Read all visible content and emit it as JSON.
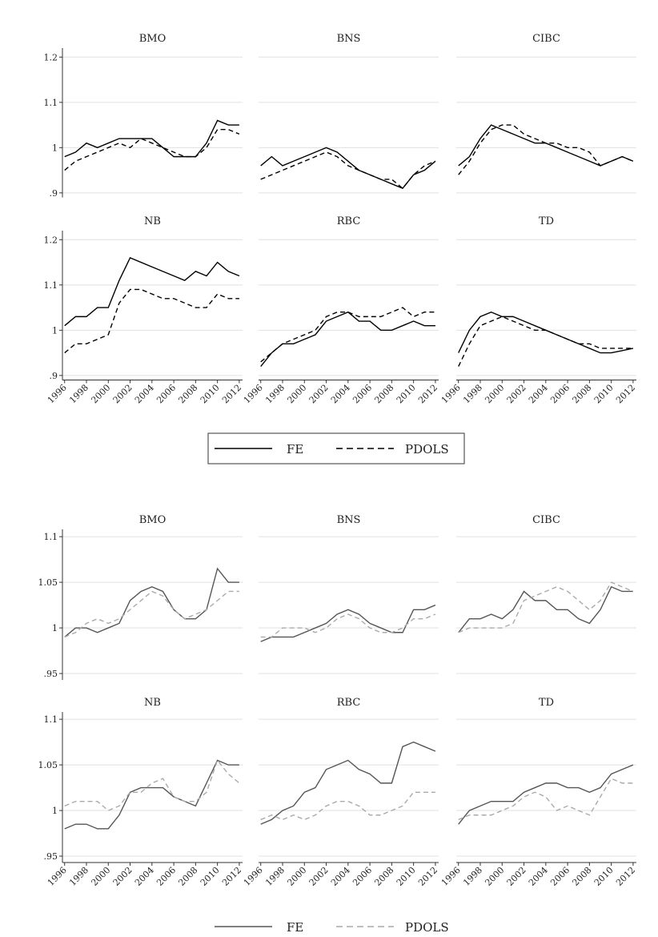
{
  "chart_data": [
    {
      "type": "line",
      "title": "BMO",
      "x": [
        1996,
        1997,
        1998,
        1999,
        2000,
        2001,
        2002,
        2003,
        2004,
        2005,
        2006,
        2007,
        2008,
        2009,
        2010,
        2011,
        2012
      ],
      "xlim": [
        1995.8,
        2012.3
      ],
      "ylim": [
        0.89,
        1.22
      ],
      "yticks": [
        {
          "value": 0.9,
          "label": ".9"
        },
        1,
        1.1,
        1.2
      ],
      "series": [
        {
          "name": "FE",
          "color": "#000000",
          "linestyle": "solid",
          "values": [
            0.98,
            0.99,
            1.01,
            1.0,
            1.01,
            1.02,
            1.02,
            1.02,
            1.02,
            1.0,
            0.98,
            0.98,
            0.98,
            1.01,
            1.06,
            1.05,
            1.05
          ]
        },
        {
          "name": "PDOLS",
          "color": "#000000",
          "linestyle": "dashed",
          "values": [
            0.95,
            0.97,
            0.98,
            0.99,
            1.0,
            1.01,
            1.0,
            1.02,
            1.01,
            1.0,
            0.99,
            0.98,
            0.98,
            1.0,
            1.04,
            1.04,
            1.03
          ]
        }
      ]
    },
    {
      "type": "line",
      "title": "BNS",
      "x": [
        1996,
        1997,
        1998,
        1999,
        2000,
        2001,
        2002,
        2003,
        2004,
        2005,
        2006,
        2007,
        2008,
        2009,
        2010,
        2011,
        2012
      ],
      "xlim": [
        1995.8,
        2012.3
      ],
      "ylim": [
        0.89,
        1.22
      ],
      "yticks": [
        {
          "value": 0.9,
          "label": ".9"
        },
        1,
        1.1,
        1.2
      ],
      "series": [
        {
          "name": "FE",
          "color": "#000000",
          "linestyle": "solid",
          "values": [
            0.96,
            0.98,
            0.96,
            0.97,
            0.98,
            0.99,
            1.0,
            0.99,
            0.97,
            0.95,
            0.94,
            0.93,
            0.92,
            0.91,
            0.94,
            0.95,
            0.97
          ]
        },
        {
          "name": "PDOLS",
          "color": "#000000",
          "linestyle": "dashed",
          "values": [
            0.93,
            0.94,
            0.95,
            0.96,
            0.97,
            0.98,
            0.99,
            0.98,
            0.96,
            0.95,
            0.94,
            0.93,
            0.93,
            0.91,
            0.94,
            0.96,
            0.97
          ]
        }
      ]
    },
    {
      "type": "line",
      "title": "CIBC",
      "x": [
        1996,
        1997,
        1998,
        1999,
        2000,
        2001,
        2002,
        2003,
        2004,
        2005,
        2006,
        2007,
        2008,
        2009,
        2010,
        2011,
        2012
      ],
      "xlim": [
        1995.8,
        2012.3
      ],
      "ylim": [
        0.89,
        1.22
      ],
      "yticks": [
        {
          "value": 0.9,
          "label": ".9"
        },
        1,
        1.1,
        1.2
      ],
      "series": [
        {
          "name": "FE",
          "color": "#000000",
          "linestyle": "solid",
          "values": [
            0.96,
            0.98,
            1.02,
            1.05,
            1.04,
            1.03,
            1.02,
            1.01,
            1.01,
            1.0,
            0.99,
            0.98,
            0.97,
            0.96,
            0.97,
            0.98,
            0.97
          ]
        },
        {
          "name": "PDOLS",
          "color": "#000000",
          "linestyle": "dashed",
          "values": [
            0.94,
            0.97,
            1.01,
            1.04,
            1.05,
            1.05,
            1.03,
            1.02,
            1.01,
            1.01,
            1.0,
            1.0,
            0.99,
            0.96,
            0.97,
            0.98,
            0.97
          ]
        }
      ]
    },
    {
      "type": "line",
      "title": "NB",
      "x": [
        1996,
        1997,
        1998,
        1999,
        2000,
        2001,
        2002,
        2003,
        2004,
        2005,
        2006,
        2007,
        2008,
        2009,
        2010,
        2011,
        2012
      ],
      "xlim": [
        1995.8,
        2012.3
      ],
      "ylim": [
        0.89,
        1.22
      ],
      "yticks": [
        {
          "value": 0.9,
          "label": ".9"
        },
        1,
        1.1,
        1.2
      ],
      "xticks": [
        1996,
        1998,
        2000,
        2002,
        2004,
        2006,
        2008,
        2010,
        2012
      ],
      "series": [
        {
          "name": "FE",
          "color": "#000000",
          "linestyle": "solid",
          "values": [
            1.01,
            1.03,
            1.03,
            1.05,
            1.05,
            1.11,
            1.16,
            1.15,
            1.14,
            1.13,
            1.12,
            1.11,
            1.13,
            1.12,
            1.15,
            1.13,
            1.12
          ]
        },
        {
          "name": "PDOLS",
          "color": "#000000",
          "linestyle": "dashed",
          "values": [
            0.95,
            0.97,
            0.97,
            0.98,
            0.99,
            1.06,
            1.09,
            1.09,
            1.08,
            1.07,
            1.07,
            1.06,
            1.05,
            1.05,
            1.08,
            1.07,
            1.07
          ]
        }
      ]
    },
    {
      "type": "line",
      "title": "RBC",
      "x": [
        1996,
        1997,
        1998,
        1999,
        2000,
        2001,
        2002,
        2003,
        2004,
        2005,
        2006,
        2007,
        2008,
        2009,
        2010,
        2011,
        2012
      ],
      "xlim": [
        1995.8,
        2012.3
      ],
      "ylim": [
        0.89,
        1.22
      ],
      "yticks": [
        {
          "value": 0.9,
          "label": ".9"
        },
        1,
        1.1,
        1.2
      ],
      "xticks": [
        1996,
        1998,
        2000,
        2002,
        2004,
        2006,
        2008,
        2010,
        2012
      ],
      "series": [
        {
          "name": "FE",
          "color": "#000000",
          "linestyle": "solid",
          "values": [
            0.92,
            0.95,
            0.97,
            0.97,
            0.98,
            0.99,
            1.02,
            1.03,
            1.04,
            1.02,
            1.02,
            1.0,
            1.0,
            1.01,
            1.02,
            1.01,
            1.01
          ]
        },
        {
          "name": "PDOLS",
          "color": "#000000",
          "linestyle": "dashed",
          "values": [
            0.93,
            0.95,
            0.97,
            0.98,
            0.99,
            1.0,
            1.03,
            1.04,
            1.04,
            1.03,
            1.03,
            1.03,
            1.04,
            1.05,
            1.03,
            1.04,
            1.04
          ]
        }
      ]
    },
    {
      "type": "line",
      "title": "TD",
      "x": [
        1996,
        1997,
        1998,
        1999,
        2000,
        2001,
        2002,
        2003,
        2004,
        2005,
        2006,
        2007,
        2008,
        2009,
        2010,
        2011,
        2012
      ],
      "xlim": [
        1995.8,
        2012.3
      ],
      "ylim": [
        0.89,
        1.22
      ],
      "yticks": [
        {
          "value": 0.9,
          "label": ".9"
        },
        1,
        1.1,
        1.2
      ],
      "xticks": [
        1996,
        1998,
        2000,
        2002,
        2004,
        2006,
        2008,
        2010,
        2012
      ],
      "series": [
        {
          "name": "FE",
          "color": "#000000",
          "linestyle": "solid",
          "values": [
            0.95,
            1.0,
            1.03,
            1.04,
            1.03,
            1.03,
            1.02,
            1.01,
            1.0,
            0.99,
            0.98,
            0.97,
            0.96,
            0.95,
            0.95,
            0.955,
            0.96
          ]
        },
        {
          "name": "PDOLS",
          "color": "#000000",
          "linestyle": "dashed",
          "values": [
            0.92,
            0.97,
            1.01,
            1.02,
            1.03,
            1.02,
            1.01,
            1.0,
            1.0,
            0.99,
            0.98,
            0.97,
            0.97,
            0.96,
            0.96,
            0.96,
            0.96
          ]
        }
      ]
    },
    {
      "type": "line",
      "title": "BMO",
      "x": [
        1996,
        1997,
        1998,
        1999,
        2000,
        2001,
        2002,
        2003,
        2004,
        2005,
        2006,
        2007,
        2008,
        2009,
        2010,
        2011,
        2012
      ],
      "xlim": [
        1995.8,
        2012.3
      ],
      "ylim": [
        0.943,
        1.108
      ],
      "yticks": [
        {
          "value": 0.95,
          "label": ".95"
        },
        1,
        1.05,
        1.1
      ],
      "series": [
        {
          "name": "FE",
          "color": "#555555",
          "linestyle": "solid",
          "values": [
            0.99,
            1.0,
            1.0,
            0.995,
            1.0,
            1.005,
            1.03,
            1.04,
            1.045,
            1.04,
            1.02,
            1.01,
            1.01,
            1.02,
            1.065,
            1.05,
            1.05
          ]
        },
        {
          "name": "PDOLS",
          "color": "#aaaaaa",
          "linestyle": "dashed",
          "values": [
            0.99,
            0.995,
            1.005,
            1.01,
            1.005,
            1.01,
            1.02,
            1.03,
            1.04,
            1.035,
            1.02,
            1.01,
            1.015,
            1.02,
            1.03,
            1.04,
            1.04
          ]
        }
      ]
    },
    {
      "type": "line",
      "title": "BNS",
      "x": [
        1996,
        1997,
        1998,
        1999,
        2000,
        2001,
        2002,
        2003,
        2004,
        2005,
        2006,
        2007,
        2008,
        2009,
        2010,
        2011,
        2012
      ],
      "xlim": [
        1995.8,
        2012.3
      ],
      "ylim": [
        0.943,
        1.108
      ],
      "yticks": [
        {
          "value": 0.95,
          "label": ".95"
        },
        1,
        1.05,
        1.1
      ],
      "series": [
        {
          "name": "FE",
          "color": "#555555",
          "linestyle": "solid",
          "values": [
            0.985,
            0.99,
            0.99,
            0.99,
            0.995,
            1.0,
            1.005,
            1.015,
            1.02,
            1.015,
            1.005,
            1.0,
            0.995,
            0.995,
            1.02,
            1.02,
            1.025
          ]
        },
        {
          "name": "PDOLS",
          "color": "#aaaaaa",
          "linestyle": "dashed",
          "values": [
            0.99,
            0.99,
            1.0,
            1.0,
            1.0,
            0.995,
            1.0,
            1.01,
            1.015,
            1.01,
            1.0,
            0.995,
            0.995,
            1.0,
            1.01,
            1.01,
            1.015
          ]
        }
      ]
    },
    {
      "type": "line",
      "title": "CIBC",
      "x": [
        1996,
        1997,
        1998,
        1999,
        2000,
        2001,
        2002,
        2003,
        2004,
        2005,
        2006,
        2007,
        2008,
        2009,
        2010,
        2011,
        2012
      ],
      "xlim": [
        1995.8,
        2012.3
      ],
      "ylim": [
        0.943,
        1.108
      ],
      "yticks": [
        {
          "value": 0.95,
          "label": ".95"
        },
        1,
        1.05,
        1.1
      ],
      "series": [
        {
          "name": "FE",
          "color": "#555555",
          "linestyle": "solid",
          "values": [
            0.995,
            1.01,
            1.01,
            1.015,
            1.01,
            1.02,
            1.04,
            1.03,
            1.03,
            1.02,
            1.02,
            1.01,
            1.005,
            1.02,
            1.045,
            1.04,
            1.04
          ]
        },
        {
          "name": "PDOLS",
          "color": "#aaaaaa",
          "linestyle": "dashed",
          "values": [
            0.995,
            1.0,
            1.0,
            1.0,
            1.0,
            1.005,
            1.03,
            1.035,
            1.04,
            1.045,
            1.04,
            1.03,
            1.02,
            1.03,
            1.05,
            1.045,
            1.04
          ]
        }
      ]
    },
    {
      "type": "line",
      "title": "NB",
      "x": [
        1996,
        1997,
        1998,
        1999,
        2000,
        2001,
        2002,
        2003,
        2004,
        2005,
        2006,
        2007,
        2008,
        2009,
        2010,
        2011,
        2012
      ],
      "xlim": [
        1995.8,
        2012.3
      ],
      "ylim": [
        0.943,
        1.108
      ],
      "yticks": [
        {
          "value": 0.95,
          "label": ".95"
        },
        1,
        1.05,
        1.1
      ],
      "xticks": [
        1996,
        1998,
        2000,
        2002,
        2004,
        2006,
        2008,
        2010,
        2012
      ],
      "series": [
        {
          "name": "FE",
          "color": "#555555",
          "linestyle": "solid",
          "values": [
            0.98,
            0.985,
            0.985,
            0.98,
            0.98,
            0.995,
            1.02,
            1.025,
            1.025,
            1.025,
            1.015,
            1.01,
            1.005,
            1.03,
            1.055,
            1.05,
            1.05
          ]
        },
        {
          "name": "PDOLS",
          "color": "#aaaaaa",
          "linestyle": "dashed",
          "values": [
            1.005,
            1.01,
            1.01,
            1.01,
            1.0,
            1.005,
            1.02,
            1.02,
            1.03,
            1.035,
            1.015,
            1.01,
            1.01,
            1.02,
            1.055,
            1.04,
            1.03
          ]
        }
      ]
    },
    {
      "type": "line",
      "title": "RBC",
      "x": [
        1996,
        1997,
        1998,
        1999,
        2000,
        2001,
        2002,
        2003,
        2004,
        2005,
        2006,
        2007,
        2008,
        2009,
        2010,
        2011,
        2012
      ],
      "xlim": [
        1995.8,
        2012.3
      ],
      "ylim": [
        0.943,
        1.108
      ],
      "yticks": [
        {
          "value": 0.95,
          "label": ".95"
        },
        1,
        1.05,
        1.1
      ],
      "xticks": [
        1996,
        1998,
        2000,
        2002,
        2004,
        2006,
        2008,
        2010,
        2012
      ],
      "series": [
        {
          "name": "FE",
          "color": "#555555",
          "linestyle": "solid",
          "values": [
            0.985,
            0.99,
            1.0,
            1.005,
            1.02,
            1.025,
            1.045,
            1.05,
            1.055,
            1.045,
            1.04,
            1.03,
            1.03,
            1.07,
            1.075,
            1.07,
            1.065
          ]
        },
        {
          "name": "PDOLS",
          "color": "#aaaaaa",
          "linestyle": "dashed",
          "values": [
            0.99,
            0.995,
            0.99,
            0.995,
            0.99,
            0.995,
            1.005,
            1.01,
            1.01,
            1.005,
            0.995,
            0.995,
            1.0,
            1.005,
            1.02,
            1.02,
            1.02
          ]
        }
      ]
    },
    {
      "type": "line",
      "title": "TD",
      "x": [
        1996,
        1997,
        1998,
        1999,
        2000,
        2001,
        2002,
        2003,
        2004,
        2005,
        2006,
        2007,
        2008,
        2009,
        2010,
        2011,
        2012
      ],
      "xlim": [
        1995.8,
        2012.3
      ],
      "ylim": [
        0.943,
        1.108
      ],
      "yticks": [
        {
          "value": 0.95,
          "label": ".95"
        },
        1,
        1.05,
        1.1
      ],
      "xticks": [
        1996,
        1998,
        2000,
        2002,
        2004,
        2006,
        2008,
        2010,
        2012
      ],
      "series": [
        {
          "name": "FE",
          "color": "#555555",
          "linestyle": "solid",
          "values": [
            0.985,
            1.0,
            1.005,
            1.01,
            1.01,
            1.01,
            1.02,
            1.025,
            1.03,
            1.03,
            1.025,
            1.025,
            1.02,
            1.025,
            1.04,
            1.045,
            1.05
          ]
        },
        {
          "name": "PDOLS",
          "color": "#aaaaaa",
          "linestyle": "dashed",
          "values": [
            0.99,
            0.995,
            0.995,
            0.995,
            1.0,
            1.005,
            1.015,
            1.02,
            1.015,
            1.0,
            1.005,
            1.0,
            0.995,
            1.015,
            1.035,
            1.03,
            1.03
          ]
        }
      ]
    }
  ]
}
